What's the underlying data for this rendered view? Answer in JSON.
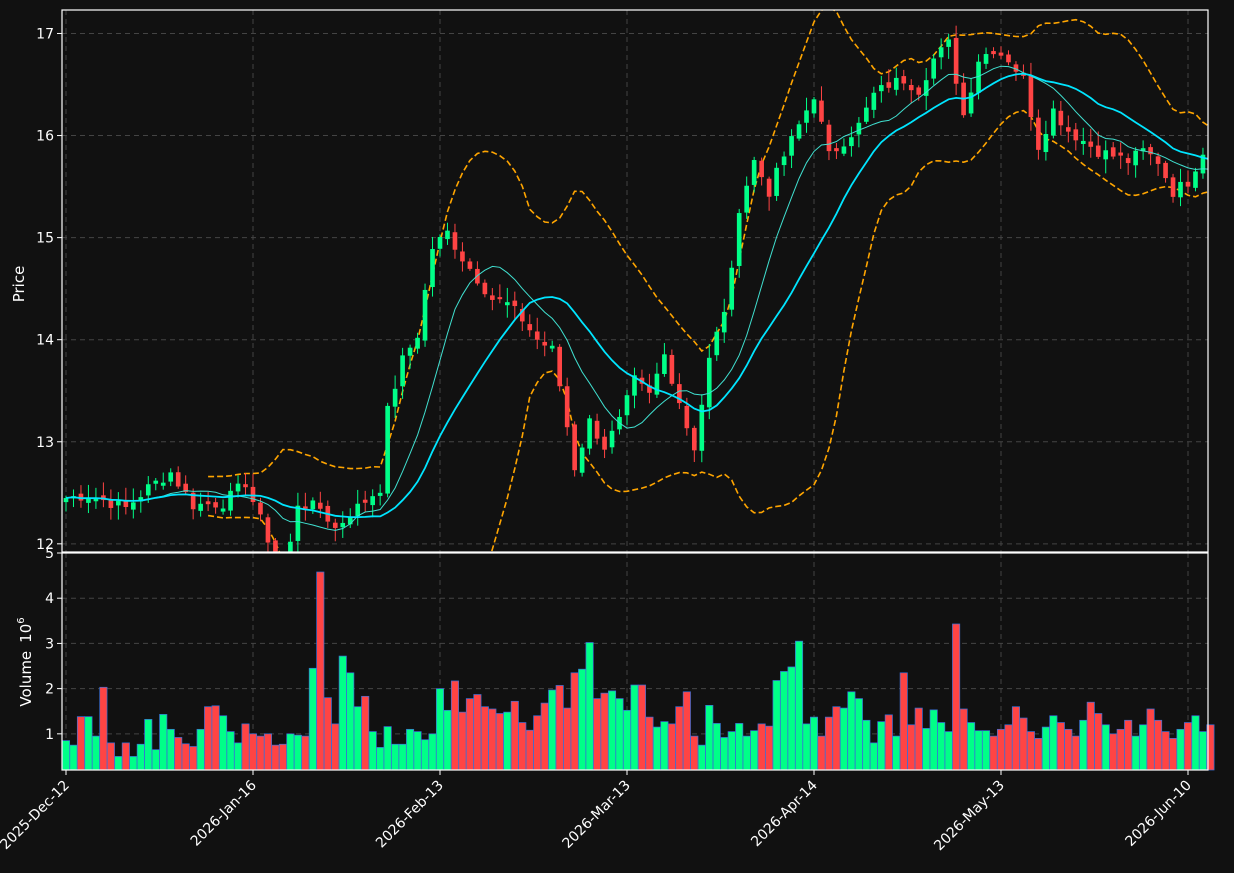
{
  "chart_data": {
    "type": "candlestick",
    "colors": {
      "background": "#111111",
      "up": "#00ff88",
      "down": "#ff4444",
      "volume_edge": "#3a6fd8",
      "ma_fast": "#40e0d0",
      "ma_slow": "#00e5ff",
      "bollinger": "#ffa500",
      "grid": "#444444",
      "text": "#ffffff"
    },
    "price_panel": {
      "ylabel": "Price",
      "ylim": [
        11.92,
        17.23
      ],
      "yticks": [
        12,
        13,
        14,
        15,
        16,
        17
      ]
    },
    "volume_panel": {
      "ylabel": "Volume",
      "exponent_label": "10",
      "exponent": "6",
      "ylim": [
        0.2,
        5.0
      ],
      "yticks": [
        1,
        2,
        3,
        4,
        5
      ]
    },
    "x_tick_labels": [
      {
        "index": 0,
        "label": "2025-Dec-12"
      },
      {
        "index": 25,
        "label": "2026-Jan-16"
      },
      {
        "index": 50,
        "label": "2026-Feb-13"
      },
      {
        "index": 75,
        "label": "2026-Mar-13"
      },
      {
        "index": 100,
        "label": "2026-Apr-14"
      },
      {
        "index": 125,
        "label": "2026-May-13"
      },
      {
        "index": 150,
        "label": "2026-Jun-10"
      }
    ],
    "n_bars": 154,
    "close_anchors": [
      [
        0,
        12.45
      ],
      [
        3,
        12.48
      ],
      [
        8,
        12.35
      ],
      [
        11,
        12.55
      ],
      [
        14,
        12.7
      ],
      [
        17,
        12.38
      ],
      [
        21,
        12.4
      ],
      [
        24,
        12.6
      ],
      [
        27,
        12.05
      ],
      [
        29,
        11.6
      ],
      [
        31,
        12.4
      ],
      [
        34,
        12.35
      ],
      [
        36,
        12.15
      ],
      [
        38,
        12.3
      ],
      [
        40,
        12.42
      ],
      [
        42,
        12.55
      ],
      [
        43,
        13.3
      ],
      [
        45,
        13.8
      ],
      [
        47,
        14.05
      ],
      [
        49,
        14.9
      ],
      [
        51,
        15.05
      ],
      [
        53,
        14.8
      ],
      [
        55,
        14.6
      ],
      [
        57,
        14.4
      ],
      [
        59,
        14.35
      ],
      [
        61,
        14.2
      ],
      [
        63,
        14.0
      ],
      [
        65,
        13.9
      ],
      [
        66,
        13.55
      ],
      [
        68,
        12.75
      ],
      [
        70,
        13.2
      ],
      [
        72,
        12.95
      ],
      [
        74,
        13.2
      ],
      [
        76,
        13.6
      ],
      [
        78,
        13.45
      ],
      [
        80,
        13.85
      ],
      [
        82,
        13.4
      ],
      [
        83,
        13.15
      ],
      [
        84,
        12.95
      ],
      [
        86,
        13.8
      ],
      [
        88,
        14.3
      ],
      [
        89,
        14.65
      ],
      [
        90,
        15.3
      ],
      [
        92,
        15.75
      ],
      [
        94,
        15.45
      ],
      [
        96,
        15.8
      ],
      [
        98,
        16.1
      ],
      [
        100,
        16.4
      ],
      [
        102,
        15.8
      ],
      [
        104,
        15.95
      ],
      [
        106,
        16.1
      ],
      [
        108,
        16.4
      ],
      [
        110,
        16.5
      ],
      [
        112,
        16.55
      ],
      [
        114,
        16.45
      ],
      [
        116,
        16.75
      ],
      [
        118,
        16.9
      ],
      [
        120,
        16.2
      ],
      [
        122,
        16.75
      ],
      [
        124,
        16.85
      ],
      [
        126,
        16.75
      ],
      [
        128,
        16.55
      ],
      [
        130,
        15.9
      ],
      [
        132,
        16.25
      ],
      [
        134,
        16.05
      ],
      [
        136,
        15.95
      ],
      [
        138,
        15.85
      ],
      [
        140,
        15.8
      ],
      [
        142,
        15.75
      ],
      [
        144,
        15.85
      ],
      [
        146,
        15.75
      ],
      [
        148,
        15.45
      ],
      [
        150,
        15.55
      ],
      [
        152,
        15.85
      ],
      [
        153,
        15.8
      ]
    ],
    "volume_values": [
      0.85,
      0.75,
      1.38,
      1.38,
      0.95,
      2.03,
      0.8,
      0.5,
      0.8,
      0.5,
      0.77,
      1.32,
      0.65,
      1.43,
      1.1,
      0.92,
      0.78,
      0.72,
      1.1,
      1.6,
      1.62,
      1.4,
      1.05,
      0.8,
      1.22,
      1.0,
      0.95,
      1.0,
      0.75,
      0.77,
      1.0,
      0.97,
      0.95,
      2.45,
      4.58,
      1.8,
      1.22,
      2.72,
      2.35,
      1.6,
      1.83,
      1.05,
      0.7,
      1.16,
      0.77,
      0.77,
      1.1,
      1.05,
      0.87,
      1.0,
      2.0,
      1.52,
      2.17,
      1.48,
      1.78,
      1.87,
      1.6,
      1.55,
      1.45,
      1.48,
      1.72,
      1.25,
      1.08,
      1.4,
      1.68,
      1.97,
      2.07,
      1.57,
      2.35,
      2.43,
      3.02,
      1.78,
      1.9,
      1.95,
      1.78,
      1.52,
      2.08,
      2.08,
      1.37,
      1.15,
      1.27,
      1.22,
      1.6,
      1.93,
      0.95,
      0.75,
      1.63,
      1.23,
      0.92,
      1.05,
      1.23,
      0.95,
      1.07,
      1.22,
      1.17,
      2.18,
      2.38,
      2.48,
      3.05,
      1.22,
      1.37,
      0.95,
      1.37,
      1.6,
      1.57,
      1.93,
      1.78,
      1.3,
      0.8,
      1.27,
      1.42,
      0.95,
      2.35,
      1.2,
      1.57,
      1.12,
      1.53,
      1.25,
      1.05,
      3.43,
      1.55,
      1.25,
      1.07,
      1.07,
      0.95,
      1.1,
      1.2,
      1.6,
      1.35,
      1.05,
      0.9,
      1.15,
      1.4,
      1.25,
      1.1,
      0.95,
      1.3,
      1.7,
      1.45,
      1.2,
      1.0,
      1.1,
      1.3,
      0.95,
      1.2,
      1.55,
      1.3,
      1.05,
      0.9,
      1.1,
      1.25,
      1.4,
      1.05,
      1.2
    ]
  }
}
